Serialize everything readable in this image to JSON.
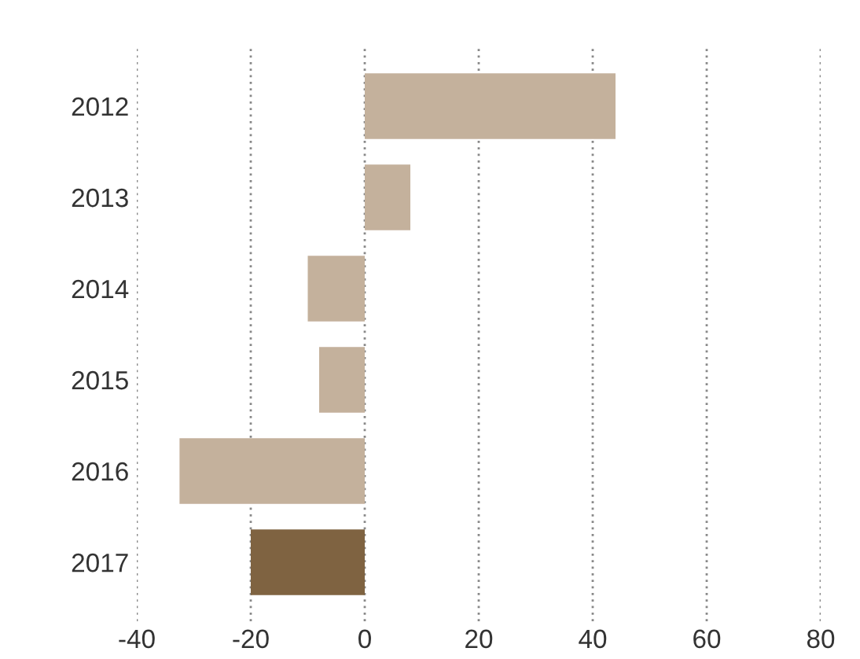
{
  "chart_data": {
    "type": "bar",
    "orientation": "horizontal",
    "categories": [
      "2012",
      "2013",
      "2014",
      "2015",
      "2016",
      "2017"
    ],
    "values": [
      44,
      8,
      -10,
      -8,
      -32.5,
      -20
    ],
    "colors": [
      "#c4b19c",
      "#c4b19c",
      "#c4b19c",
      "#c4b19c",
      "#c4b19c",
      "#7f6341"
    ],
    "xlim": [
      -40,
      80
    ],
    "xticks": [
      -40,
      -20,
      0,
      20,
      40,
      60,
      80
    ],
    "grid": "x"
  }
}
